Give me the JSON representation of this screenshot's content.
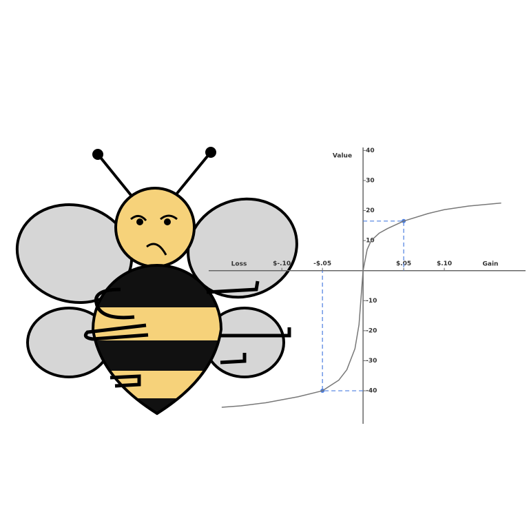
{
  "chart_data": {
    "type": "line",
    "y_label": "Value",
    "x_label_left": "Loss",
    "x_label_right": "Gain",
    "x": [
      -0.174,
      -0.15,
      -0.12,
      -0.1,
      -0.08,
      -0.05,
      -0.03,
      -0.02,
      -0.01,
      -0.005,
      0,
      0.005,
      0.01,
      0.02,
      0.03,
      0.05,
      0.08,
      0.1,
      0.13,
      0.17
    ],
    "series": [
      {
        "color": "#777777",
        "values": [
          -45.5,
          -45,
          -44,
          -43,
          -42,
          -40,
          -36.5,
          -33,
          -26,
          -18,
          0,
          7,
          10,
          12.5,
          14,
          16.5,
          19,
          20.3,
          21.5,
          22.5
        ]
      }
    ],
    "guides": [
      {
        "x": 0.05,
        "y": 16.5,
        "color": "#4a7de0"
      },
      {
        "x": -0.05,
        "y": -40,
        "color": "#4a7de0"
      }
    ],
    "xlim": [
      -0.19,
      0.2
    ],
    "ylim": [
      -51,
      41
    ],
    "xticks": [
      {
        "value": -0.1,
        "label": "$-.10"
      },
      {
        "value": -0.05,
        "label": "-$.05"
      },
      {
        "value": 0.05,
        "label": "$.05"
      },
      {
        "value": 0.1,
        "label": "$.10"
      }
    ],
    "yticks": [
      40,
      30,
      20,
      10,
      -10,
      -20,
      -30,
      -40
    ]
  }
}
